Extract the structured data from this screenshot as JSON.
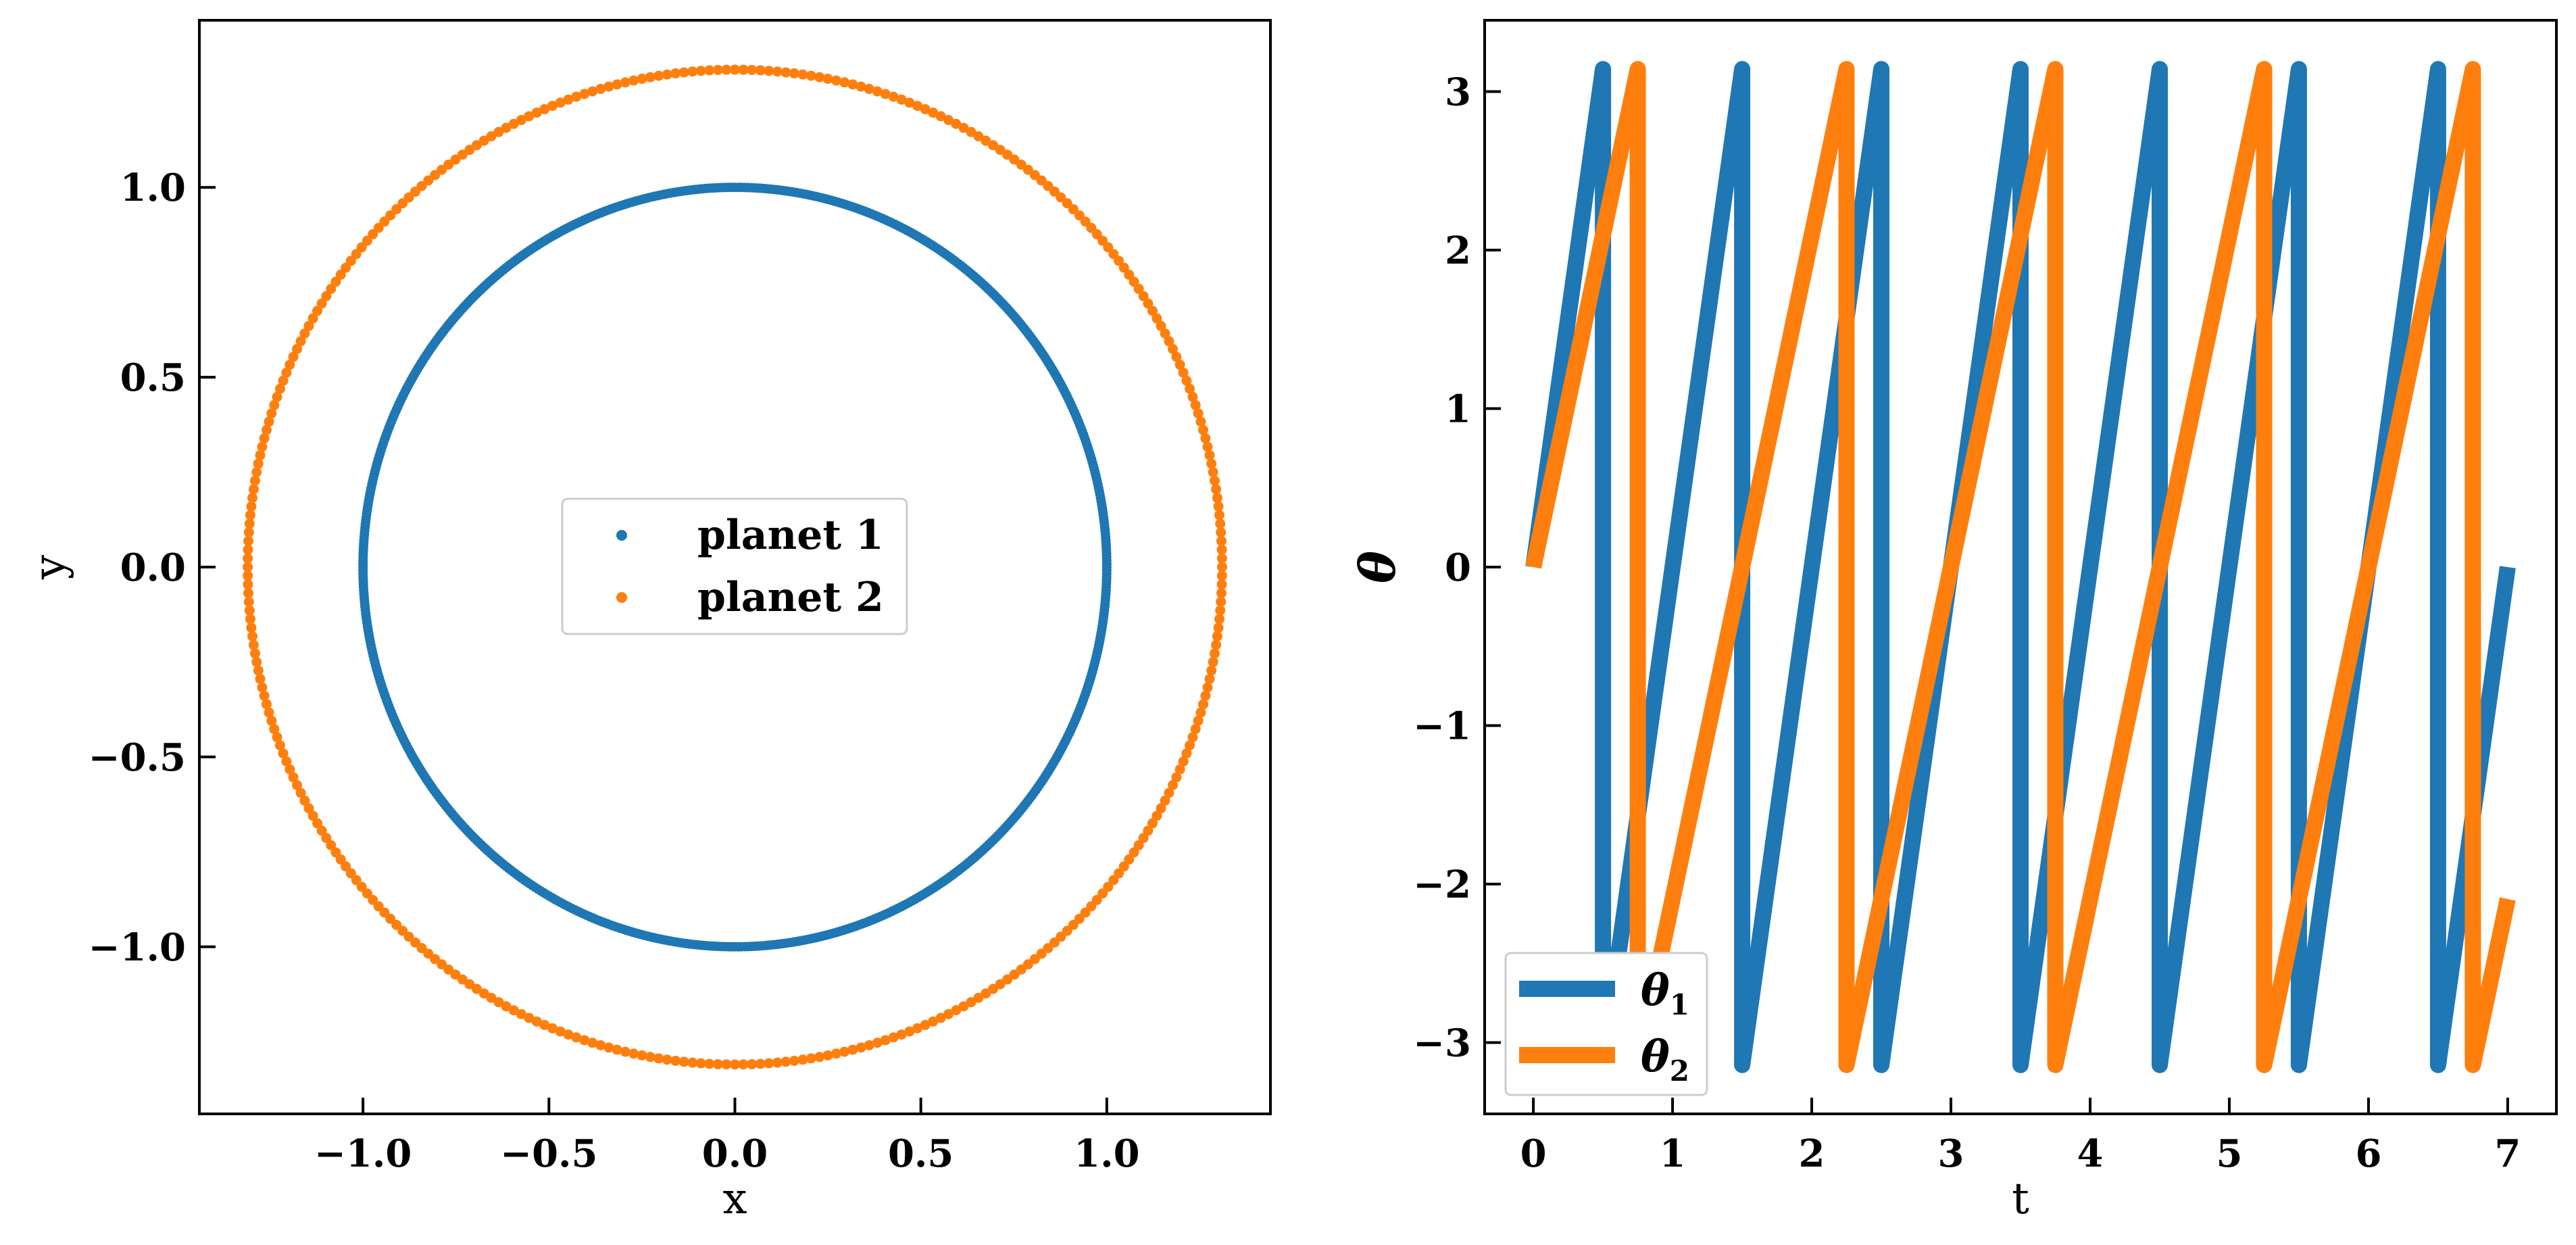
{
  "chart_data": [
    {
      "type": "scatter",
      "xlabel": "x",
      "ylabel": "y",
      "xlim": [
        -1.44,
        1.44
      ],
      "ylim": [
        -1.44,
        1.44
      ],
      "xticks": [
        -1.0,
        -0.5,
        0.0,
        0.5,
        1.0
      ],
      "xtick_labels": [
        "−1.0",
        "−0.5",
        "0.0",
        "0.5",
        "1.0"
      ],
      "yticks": [
        -1.0,
        -0.5,
        0.0,
        0.5,
        1.0
      ],
      "ytick_labels": [
        "−1.0",
        "−0.5",
        "0.0",
        "0.5",
        "1.0"
      ],
      "grid": false,
      "legend_position": "center",
      "series": [
        {
          "name": "planet 1",
          "color": "#1f77b4",
          "shape": "circle",
          "radius": 1.0,
          "points": 720
        },
        {
          "name": "planet 2",
          "color": "#ff7f0e",
          "shape": "circle",
          "radius": 1.31,
          "points": 360
        }
      ]
    },
    {
      "type": "line",
      "xlabel": "t",
      "ylabel": "θ",
      "xlim": [
        -0.35,
        7.35
      ],
      "ylim": [
        -3.45,
        3.45
      ],
      "xticks": [
        0,
        1,
        2,
        3,
        4,
        5,
        6,
        7
      ],
      "xtick_labels": [
        "0",
        "1",
        "2",
        "3",
        "4",
        "5",
        "6",
        "7"
      ],
      "yticks": [
        -3,
        -2,
        -1,
        0,
        1,
        2,
        3
      ],
      "ytick_labels": [
        "−3",
        "−2",
        "−1",
        "0",
        "1",
        "2",
        "3"
      ],
      "grid": false,
      "legend_position": "lower left",
      "series": [
        {
          "name": "θ",
          "subscript": "1",
          "color": "#1f77b4",
          "x": [
            0,
            0.5,
            0.5,
            1.5,
            1.5,
            2.5,
            2.5,
            3.5,
            3.5,
            4.5,
            4.5,
            5.5,
            5.5,
            6.5,
            6.5,
            7.0
          ],
          "y": [
            0,
            3.1416,
            -3.1416,
            3.1416,
            -3.1416,
            3.1416,
            -3.1416,
            3.1416,
            -3.1416,
            3.1416,
            -3.1416,
            3.1416,
            -3.1416,
            3.1416,
            -3.1416,
            0.0
          ]
        },
        {
          "name": "θ",
          "subscript": "2",
          "color": "#ff7f0e",
          "x": [
            0,
            0.75,
            0.75,
            2.25,
            2.25,
            3.75,
            3.75,
            5.25,
            5.25,
            6.75,
            6.75,
            7.0
          ],
          "y": [
            0,
            3.1416,
            -3.1416,
            3.1416,
            -3.1416,
            3.1416,
            -3.1416,
            3.1416,
            -3.1416,
            3.1416,
            -3.1416,
            -2.0944
          ]
        }
      ]
    }
  ]
}
